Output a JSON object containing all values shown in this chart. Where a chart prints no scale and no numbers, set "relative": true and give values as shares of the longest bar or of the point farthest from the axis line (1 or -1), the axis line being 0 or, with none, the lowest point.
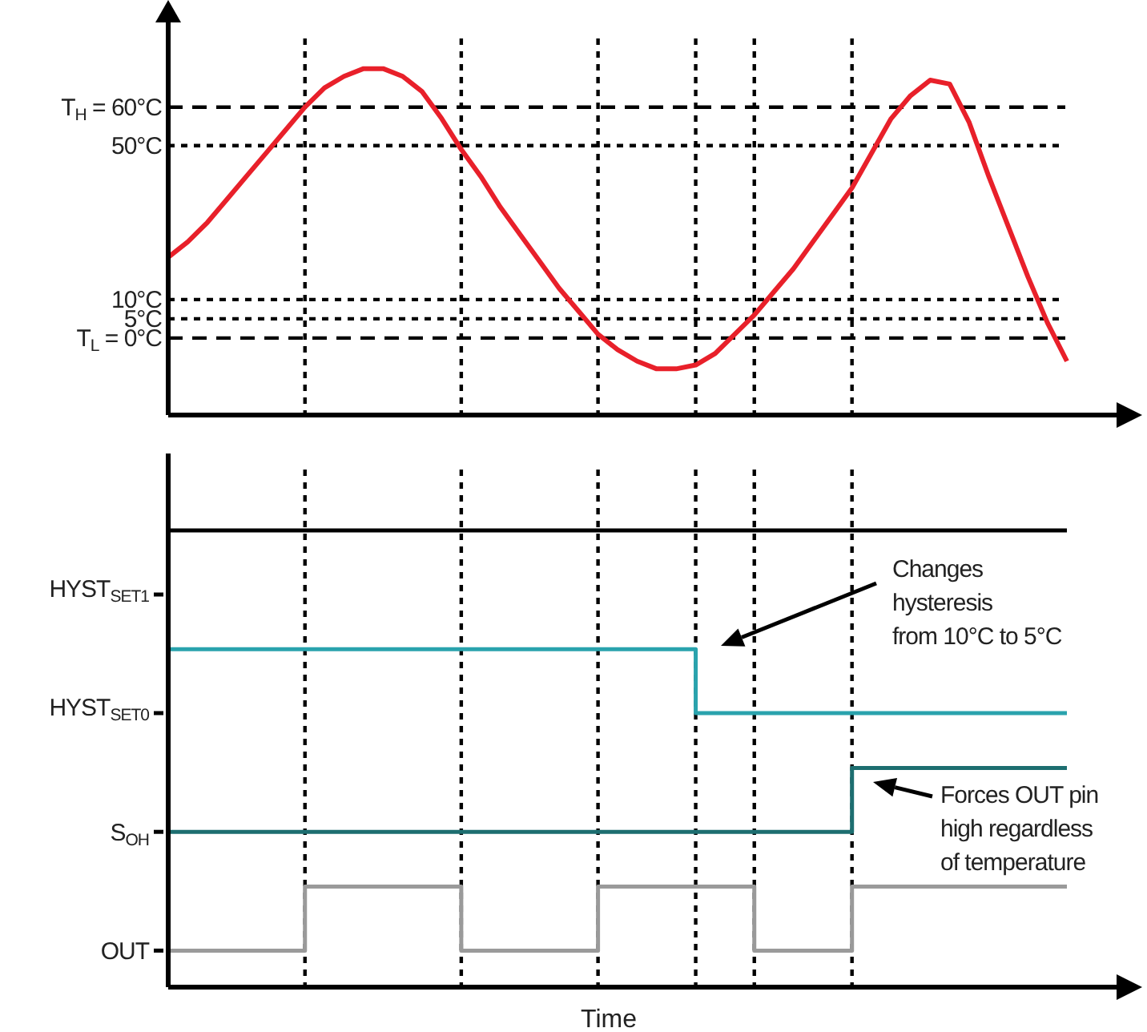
{
  "chart_data": [
    {
      "type": "line",
      "ylim": [
        -20,
        82
      ],
      "tick_labels": "y",
      "grid": true,
      "categories": [
        null,
        null,
        null,
        null,
        null,
        null,
        null,
        null,
        null,
        null,
        null,
        null,
        null,
        null,
        null,
        null,
        null,
        null,
        null,
        null,
        null,
        null,
        null,
        null,
        null,
        null,
        null,
        null,
        null,
        null,
        null,
        null,
        null,
        null,
        null,
        null,
        null,
        null,
        null,
        null,
        null,
        null,
        null,
        null,
        null,
        null,
        null
      ],
      "yticks": [
        {
          "value": 60,
          "label": "T$_{H}$ = 60°C"
        },
        {
          "value": 50,
          "label": "50°C"
        },
        {
          "value": 10,
          "label": "10°C"
        },
        {
          "value": 5,
          "label": "5°C"
        },
        {
          "value": 0,
          "label": "T$_{L}$ = 0°C"
        }
      ],
      "series": [
        {
          "color": "#e8202a",
          "values": [
            21,
            25,
            30,
            36,
            42,
            48,
            54,
            60,
            65,
            68,
            70,
            70,
            68,
            64,
            57,
            49,
            42,
            34,
            27,
            20,
            13,
            7,
            1,
            -3,
            -6,
            -8,
            -8,
            -7,
            -4,
            1,
            6,
            12,
            18,
            25,
            32,
            39,
            48,
            57,
            63,
            67,
            66,
            56,
            42,
            29,
            16,
            4,
            -6
          ]
        }
      ]
    },
    {
      "type": "step",
      "relative": true,
      "tick_labels": false,
      "xlabel": "Time",
      "categories": [
        null,
        null,
        null,
        null,
        null,
        null,
        null,
        null,
        null,
        null,
        null,
        null,
        null,
        null,
        null,
        null,
        null,
        null,
        null,
        null,
        null,
        null,
        null,
        null,
        null,
        null,
        null,
        null,
        null,
        null,
        null,
        null,
        null,
        null,
        null,
        null,
        null,
        null,
        null,
        null,
        null,
        null,
        null,
        null,
        null,
        null,
        null
      ],
      "series": [
        {
          "color": "#000000",
          "values": [
            1,
            1,
            1,
            1,
            1,
            1,
            1,
            1,
            1,
            1,
            1,
            1,
            1,
            1,
            1,
            1,
            1,
            1,
            1,
            1,
            1,
            1,
            1,
            1,
            1,
            1,
            1,
            1,
            1,
            1,
            1,
            1,
            1,
            1,
            1,
            1,
            1,
            1,
            1,
            1,
            1,
            1,
            1,
            1,
            1,
            1,
            1
          ]
        },
        {
          "color": "#2aa3ad",
          "values": [
            0.74,
            0.74,
            0.74,
            0.74,
            0.74,
            0.74,
            0.74,
            0.74,
            0.74,
            0.74,
            0.74,
            0.74,
            0.74,
            0.74,
            0.74,
            0.74,
            0.74,
            0.74,
            0.74,
            0.74,
            0.74,
            0.74,
            0.74,
            0.74,
            0.74,
            0.74,
            0.74,
            0.6,
            0.6,
            0.6,
            0.6,
            0.6,
            0.6,
            0.6,
            0.6,
            0.6,
            0.6,
            0.6,
            0.6,
            0.6,
            0.6,
            0.6,
            0.6,
            0.6,
            0.6,
            0.6,
            0.6
          ]
        },
        {
          "name": "S$_{OH}$",
          "color": "#1d6e70",
          "values": [
            0.34,
            0.34,
            0.34,
            0.34,
            0.34,
            0.34,
            0.34,
            0.34,
            0.34,
            0.34,
            0.34,
            0.34,
            0.34,
            0.34,
            0.34,
            0.34,
            0.34,
            0.34,
            0.34,
            0.34,
            0.34,
            0.34,
            0.34,
            0.34,
            0.34,
            0.34,
            0.34,
            0.34,
            0.34,
            0.34,
            0.34,
            0.34,
            0.34,
            0.34,
            0.34,
            0.48,
            0.48,
            0.48,
            0.48,
            0.48,
            0.48,
            0.48,
            0.48,
            0.48,
            0.48,
            0.48,
            0.48
          ]
        },
        {
          "name": "OUT",
          "color": "#9a9a9a",
          "values": [
            0.08,
            0.08,
            0.08,
            0.08,
            0.08,
            0.08,
            0.08,
            0.22,
            0.22,
            0.22,
            0.22,
            0.22,
            0.22,
            0.22,
            0.22,
            0.08,
            0.08,
            0.08,
            0.08,
            0.08,
            0.08,
            0.08,
            0.22,
            0.22,
            0.22,
            0.22,
            0.22,
            0.22,
            0.22,
            0.22,
            0.08,
            0.08,
            0.08,
            0.08,
            0.08,
            0.22,
            0.22,
            0.22,
            0.22,
            0.22,
            0.22,
            0.22,
            0.22,
            0.22,
            0.22,
            0.22,
            0.22
          ]
        }
      ],
      "annotations": [
        "HYST$_{SET1}$",
        "HYST$_{SET0}$",
        "Changes\nhysteresis\nfrom 10°C to 5°C",
        "Forces OUT pin\nhigh regardless\nof temperature"
      ]
    }
  ]
}
